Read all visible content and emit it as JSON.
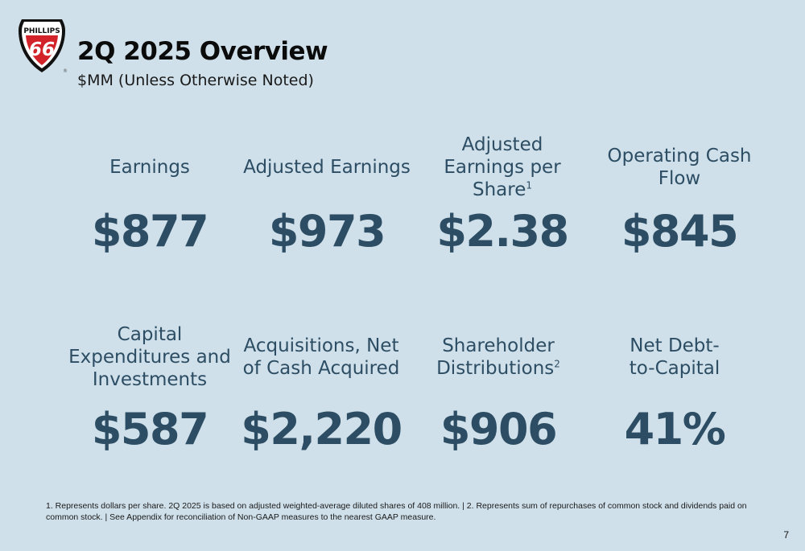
{
  "logo": {
    "brand_text": "PHILLIPS",
    "number_text": "66",
    "registered_mark": "®",
    "colors": {
      "red": "#d2232a",
      "black": "#111111",
      "white": "#ffffff"
    }
  },
  "header": {
    "title": "2Q 2025 Overview",
    "subtitle": "$MM (Unless Otherwise Noted)"
  },
  "metrics_row1": [
    {
      "label": "Earnings",
      "sup": "",
      "value": "$877"
    },
    {
      "label": "Adjusted Earnings",
      "sup": "",
      "value": "$973"
    },
    {
      "label": "Adjusted Earnings per Share",
      "sup": "1",
      "value": "$2.38"
    },
    {
      "label": "Operating Cash Flow",
      "sup": "",
      "value": "$845"
    }
  ],
  "metrics_row2": [
    {
      "label": "Capital Expenditures and Investments",
      "sup": "",
      "value": "$587"
    },
    {
      "label": "Acquisitions, Net of Cash Acquired",
      "sup": "",
      "value": "$2,220"
    },
    {
      "label": "Shareholder Distributions",
      "sup": "2",
      "value": "$906"
    },
    {
      "label": "Net Debt-to-Capital",
      "sup": "",
      "value": "41%"
    }
  ],
  "footnote": "1. Represents dollars per share. 2Q 2025 is based on adjusted weighted-average diluted shares of 408 million. | 2. Represents sum of repurchases of common stock and dividends paid on common stock. | See Appendix for reconciliation of Non-GAAP measures to the nearest GAAP measure.",
  "page_number": "7",
  "colors": {
    "background": "#cfe0ea",
    "accent": "#2c4d63",
    "title": "#0b0b0b"
  }
}
